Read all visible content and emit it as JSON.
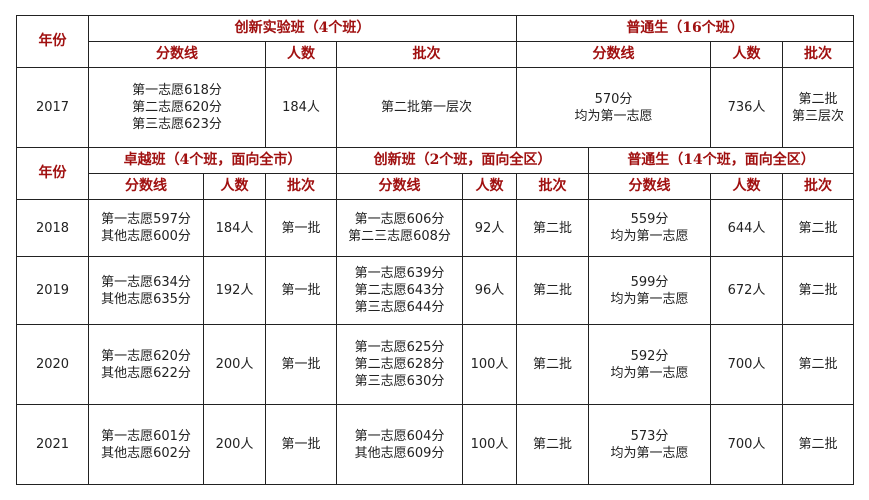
{
  "table1": {
    "year_header": "年份",
    "group1_title": "创新实验班（4个班）",
    "group2_title": "普通生（16个班）",
    "col_score": "分数线",
    "col_count": "人数",
    "col_batch": "批次",
    "row": {
      "year": "2017",
      "g1_score": [
        "第一志愿618分",
        "第二志愿620分",
        "第三志愿623分"
      ],
      "g1_count": "184人",
      "g1_batch": "第二批第一层次",
      "g2_score": [
        "570分",
        "均为第一志愿"
      ],
      "g2_count": "736人",
      "g2_batch": [
        "第二批",
        "第三层次"
      ]
    }
  },
  "table2": {
    "year_header": "年份",
    "group1_title": "卓越班（4个班，面向全市）",
    "group2_title": "创新班（2个班，面向全区）",
    "group3_title": "普通生（14个班，面向全区）",
    "col_score": "分数线",
    "col_count": "人数",
    "col_batch": "批次",
    "rows": [
      {
        "year": "2018",
        "g1_score": [
          "第一志愿597分",
          "其他志愿600分"
        ],
        "g1_count": "184人",
        "g1_batch": "第一批",
        "g2_score": [
          "第一志愿606分",
          "第二三志愿608分"
        ],
        "g2_count": "92人",
        "g2_batch": "第二批",
        "g3_score": [
          "559分",
          "均为第一志愿"
        ],
        "g3_count": "644人",
        "g3_batch": "第二批"
      },
      {
        "year": "2019",
        "g1_score": [
          "第一志愿634分",
          "其他志愿635分"
        ],
        "g1_count": "192人",
        "g1_batch": "第一批",
        "g2_score": [
          "第一志愿639分",
          "第二志愿643分",
          "第三志愿644分"
        ],
        "g2_count": "96人",
        "g2_batch": "第二批",
        "g3_score": [
          "599分",
          "均为第一志愿"
        ],
        "g3_count": "672人",
        "g3_batch": "第二批"
      },
      {
        "year": "2020",
        "g1_score": [
          "第一志愿620分",
          "其他志愿622分"
        ],
        "g1_count": "200人",
        "g1_batch": "第一批",
        "g2_score": [
          "第一志愿625分",
          "第二志愿628分",
          "第三志愿630分"
        ],
        "g2_count": "100人",
        "g2_batch": "第二批",
        "g3_score": [
          "592分",
          "均为第一志愿"
        ],
        "g3_count": "700人",
        "g3_batch": "第二批"
      },
      {
        "year": "2021",
        "g1_score": [
          "第一志愿601分",
          "其他志愿602分"
        ],
        "g1_count": "200人",
        "g1_batch": "第一批",
        "g2_score": [
          "第一志愿604分",
          "其他志愿609分"
        ],
        "g2_count": "100人",
        "g2_batch": "第二批",
        "g3_score": [
          "573分",
          "均为第一志愿"
        ],
        "g3_count": "700人",
        "g3_batch": "第二批"
      }
    ]
  },
  "colors": {
    "header_text": "#a01010",
    "border": "#222222",
    "body_text": "#222222"
  }
}
